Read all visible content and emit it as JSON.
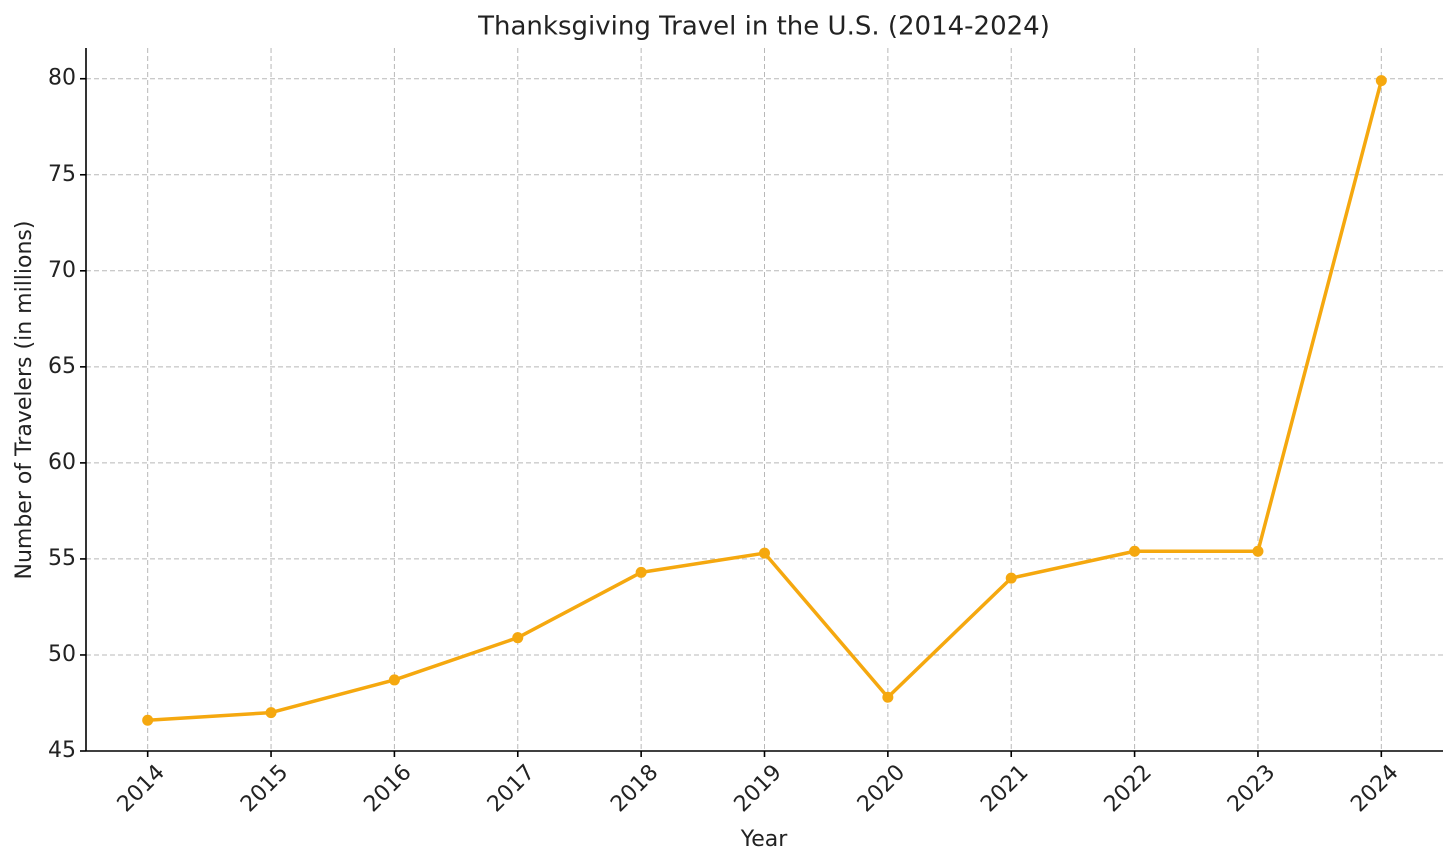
{
  "chart_data": {
    "type": "line",
    "title": "Thanksgiving Travel in the U.S. (2014-2024)",
    "x_label": "Year",
    "y_label": "Number of Travelers (in millions)",
    "x": [
      2014,
      2015,
      2016,
      2017,
      2018,
      2019,
      2020,
      2021,
      2022,
      2023,
      2024
    ],
    "series": [
      {
        "color": "#f5a80f",
        "values": [
          46.6,
          47.0,
          48.7,
          50.9,
          54.3,
          55.3,
          47.8,
          54.0,
          55.4,
          55.4,
          79.9
        ]
      }
    ],
    "xlim": [
      2013.5,
      2024.5
    ],
    "xticks": [
      2014,
      2015,
      2016,
      2017,
      2018,
      2019,
      2020,
      2021,
      2022,
      2023,
      2024
    ],
    "ylim": [
      45,
      81.6
    ],
    "yticks": [
      45,
      50,
      55,
      60,
      65,
      70,
      75,
      80
    ],
    "grid": true
  }
}
